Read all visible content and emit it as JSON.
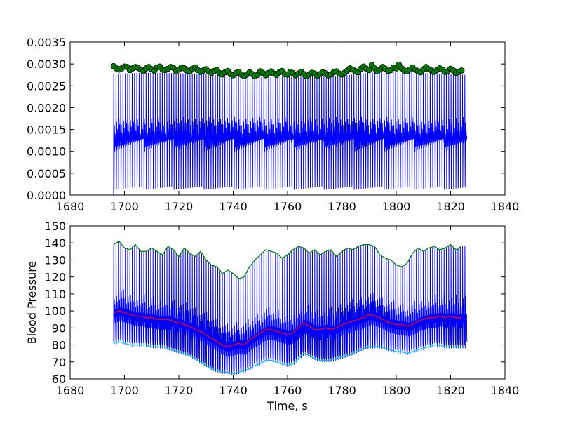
{
  "chart_data": [
    {
      "type": "line",
      "title": "",
      "xlabel": "",
      "ylabel": "",
      "xlim": [
        1680,
        1840
      ],
      "ylim": [
        0.0,
        0.0035
      ],
      "xticks": [
        1680,
        1700,
        1720,
        1740,
        1760,
        1780,
        1800,
        1820,
        1840
      ],
      "xtick_labels": [
        "1680",
        "1700",
        "1720",
        "1740",
        "1760",
        "1780",
        "1800",
        "1820",
        "1840"
      ],
      "yticks": [
        0.0,
        0.0005,
        0.001,
        0.0015,
        0.002,
        0.0025,
        0.003,
        0.0035
      ],
      "ytick_labels": [
        "0.0000",
        "0.0005",
        "0.0010",
        "0.0015",
        "0.0020",
        "0.0025",
        "0.0030",
        "0.0035"
      ],
      "grid": false,
      "signal": {
        "color": "#0000ff",
        "t_start": 1696,
        "t_end": 1825.5,
        "period_s": 0.85,
        "peak_envelope": {
          "x": [
            1696,
            1710,
            1725,
            1740,
            1750,
            1765,
            1780,
            1790,
            1805,
            1825
          ],
          "y": [
            0.00278,
            0.0028,
            0.00278,
            0.00272,
            0.0027,
            0.00271,
            0.00273,
            0.0028,
            0.00281,
            0.00275
          ]
        },
        "trough_value": 0.00012,
        "mid_band": [
          0.001,
          0.0018
        ]
      },
      "peaks": {
        "color": "#008000",
        "marker": "circle",
        "x": [
          1696,
          1697,
          1698,
          1699,
          1700,
          1701,
          1702,
          1703,
          1704,
          1705,
          1706,
          1707,
          1708,
          1709,
          1710,
          1711,
          1712,
          1713,
          1714,
          1715,
          1716,
          1717,
          1718,
          1719,
          1720,
          1721,
          1722,
          1723,
          1724,
          1725,
          1726,
          1727,
          1728,
          1729,
          1730,
          1731,
          1732,
          1733,
          1734,
          1735,
          1736,
          1737,
          1738,
          1739,
          1740,
          1741,
          1742,
          1743,
          1744,
          1745,
          1746,
          1747,
          1748,
          1749,
          1750,
          1751,
          1752,
          1753,
          1754,
          1755,
          1756,
          1757,
          1758,
          1759,
          1760,
          1761,
          1762,
          1763,
          1764,
          1765,
          1766,
          1767,
          1768,
          1769,
          1770,
          1771,
          1772,
          1773,
          1774,
          1775,
          1776,
          1777,
          1778,
          1779,
          1780,
          1781,
          1782,
          1783,
          1784,
          1785,
          1786,
          1787,
          1788,
          1789,
          1790,
          1791,
          1792,
          1793,
          1794,
          1795,
          1796,
          1797,
          1798,
          1799,
          1800,
          1801,
          1802,
          1803,
          1804,
          1805,
          1806,
          1807,
          1808,
          1809,
          1810,
          1811,
          1812,
          1813,
          1814,
          1815,
          1816,
          1817,
          1818,
          1819,
          1820,
          1821,
          1822,
          1823,
          1824
        ],
        "y": [
          0.00295,
          0.0029,
          0.00287,
          0.0029,
          0.00294,
          0.00293,
          0.00286,
          0.0029,
          0.00293,
          0.00291,
          0.00287,
          0.00284,
          0.0029,
          0.00293,
          0.00288,
          0.00285,
          0.00292,
          0.00294,
          0.00287,
          0.00286,
          0.00289,
          0.00293,
          0.00291,
          0.00284,
          0.00287,
          0.00292,
          0.0029,
          0.00285,
          0.00283,
          0.00289,
          0.00292,
          0.00286,
          0.00282,
          0.00285,
          0.00288,
          0.00283,
          0.0028,
          0.00284,
          0.00286,
          0.00279,
          0.00276,
          0.00281,
          0.00284,
          0.00277,
          0.00274,
          0.00279,
          0.00282,
          0.00276,
          0.00272,
          0.00276,
          0.00281,
          0.00277,
          0.00272,
          0.00275,
          0.00283,
          0.00279,
          0.00274,
          0.00279,
          0.00283,
          0.00278,
          0.00275,
          0.00281,
          0.00284,
          0.00277,
          0.00276,
          0.00282,
          0.00279,
          0.00274,
          0.00278,
          0.00282,
          0.00277,
          0.00272,
          0.00276,
          0.0028,
          0.00278,
          0.00273,
          0.00277,
          0.00281,
          0.00279,
          0.00274,
          0.00276,
          0.00281,
          0.00283,
          0.00278,
          0.00276,
          0.0028,
          0.00285,
          0.0029,
          0.00287,
          0.00283,
          0.00281,
          0.00289,
          0.00294,
          0.00289,
          0.00286,
          0.00298,
          0.0029,
          0.00283,
          0.00287,
          0.00293,
          0.00289,
          0.00284,
          0.00286,
          0.00292,
          0.0029,
          0.00298,
          0.0029,
          0.00285,
          0.00283,
          0.00287,
          0.00292,
          0.00287,
          0.00283,
          0.00281,
          0.00288,
          0.00293,
          0.00288,
          0.00285,
          0.00282,
          0.00286,
          0.0029,
          0.00287,
          0.00282,
          0.00284,
          0.00289,
          0.00285,
          0.0028,
          0.00282,
          0.00285
        ]
      }
    },
    {
      "type": "line",
      "title": "",
      "xlabel": "Time, s",
      "ylabel": "Blood Pressure",
      "xlim": [
        1680,
        1840
      ],
      "ylim": [
        60,
        150
      ],
      "xticks": [
        1680,
        1700,
        1720,
        1740,
        1760,
        1780,
        1800,
        1820,
        1840
      ],
      "xtick_labels": [
        "1680",
        "1700",
        "1720",
        "1740",
        "1760",
        "1780",
        "1800",
        "1820",
        "1840"
      ],
      "yticks": [
        60,
        70,
        80,
        90,
        100,
        110,
        120,
        130,
        140,
        150
      ],
      "ytick_labels": [
        "60",
        "70",
        "80",
        "90",
        "100",
        "110",
        "120",
        "130",
        "140",
        "150"
      ],
      "grid": false,
      "signal": {
        "color": "#0000ff",
        "t_start": 1696,
        "t_end": 1825.5,
        "period_s": 0.85,
        "note_dicrotic_band": [
          85,
          112
        ]
      },
      "series": [
        {
          "name": "",
          "color": "#008000",
          "x": [
            1696,
            1698,
            1700,
            1702,
            1704,
            1706,
            1708,
            1710,
            1712,
            1714,
            1716,
            1718,
            1720,
            1722,
            1724,
            1726,
            1728,
            1730,
            1732,
            1734,
            1736,
            1738,
            1740,
            1742,
            1744,
            1746,
            1748,
            1750,
            1752,
            1754,
            1756,
            1758,
            1760,
            1762,
            1764,
            1766,
            1768,
            1770,
            1772,
            1774,
            1776,
            1778,
            1780,
            1782,
            1784,
            1786,
            1788,
            1790,
            1792,
            1794,
            1796,
            1798,
            1800,
            1802,
            1804,
            1806,
            1808,
            1810,
            1812,
            1814,
            1816,
            1818,
            1820,
            1822,
            1824
          ],
          "y": [
            139,
            141,
            137,
            136,
            139,
            135,
            135,
            137,
            135,
            133,
            138,
            136,
            132,
            137,
            134,
            132,
            135,
            130,
            127,
            126,
            122,
            124,
            122,
            119,
            120,
            126,
            130,
            133,
            136,
            135,
            134,
            131,
            133,
            136,
            138,
            137,
            134,
            136,
            133,
            135,
            136,
            132,
            135,
            137,
            136,
            138,
            139,
            139,
            138,
            133,
            131,
            130,
            127,
            126,
            128,
            134,
            137,
            135,
            137,
            138,
            136,
            137,
            139,
            136,
            138
          ]
        },
        {
          "name": "",
          "color": "#ff0000",
          "x": [
            1696,
            1698,
            1700,
            1702,
            1704,
            1706,
            1708,
            1710,
            1712,
            1714,
            1716,
            1718,
            1720,
            1722,
            1724,
            1726,
            1728,
            1730,
            1732,
            1734,
            1736,
            1738,
            1740,
            1742,
            1744,
            1746,
            1748,
            1750,
            1752,
            1754,
            1756,
            1758,
            1760,
            1762,
            1764,
            1766,
            1768,
            1770,
            1772,
            1774,
            1776,
            1778,
            1780,
            1782,
            1784,
            1786,
            1788,
            1790,
            1792,
            1794,
            1796,
            1798,
            1800,
            1802,
            1804,
            1806,
            1808,
            1810,
            1812,
            1814,
            1816,
            1818,
            1820,
            1822,
            1824
          ],
          "y": [
            99,
            100,
            99,
            98,
            97,
            97,
            96,
            96,
            95,
            95,
            95,
            94,
            93,
            92,
            91,
            89,
            88,
            86,
            84,
            82,
            80,
            79,
            80,
            81,
            80,
            83,
            85,
            87,
            89,
            89,
            88,
            87,
            86,
            87,
            90,
            93,
            91,
            89,
            89,
            90,
            89,
            90,
            92,
            93,
            94,
            95,
            96,
            98,
            97,
            96,
            94,
            93,
            92,
            92,
            91,
            92,
            94,
            95,
            96,
            96,
            97,
            96,
            97,
            96,
            96
          ]
        },
        {
          "name": "",
          "color": "#00bfff",
          "x": [
            1696,
            1698,
            1700,
            1702,
            1704,
            1706,
            1708,
            1710,
            1712,
            1714,
            1716,
            1718,
            1720,
            1722,
            1724,
            1726,
            1728,
            1730,
            1732,
            1734,
            1736,
            1738,
            1740,
            1742,
            1744,
            1746,
            1748,
            1750,
            1752,
            1754,
            1756,
            1758,
            1760,
            1762,
            1764,
            1766,
            1768,
            1770,
            1772,
            1774,
            1776,
            1778,
            1780,
            1782,
            1784,
            1786,
            1788,
            1790,
            1792,
            1794,
            1796,
            1798,
            1800,
            1802,
            1804,
            1806,
            1808,
            1810,
            1812,
            1814,
            1816,
            1818,
            1820,
            1822,
            1824
          ],
          "y": [
            81,
            82,
            81,
            80,
            80,
            80,
            80,
            79,
            79,
            79,
            78,
            77,
            76,
            75,
            74,
            72,
            70,
            68,
            66,
            65,
            64,
            64,
            63,
            64,
            65,
            66,
            68,
            69,
            71,
            71,
            70,
            69,
            68,
            69,
            72,
            75,
            74,
            72,
            71,
            71,
            71,
            72,
            73,
            74,
            75,
            77,
            78,
            79,
            79,
            79,
            78,
            77,
            76,
            76,
            75,
            76,
            77,
            78,
            79,
            80,
            80,
            79,
            79,
            79,
            79
          ]
        }
      ]
    }
  ]
}
